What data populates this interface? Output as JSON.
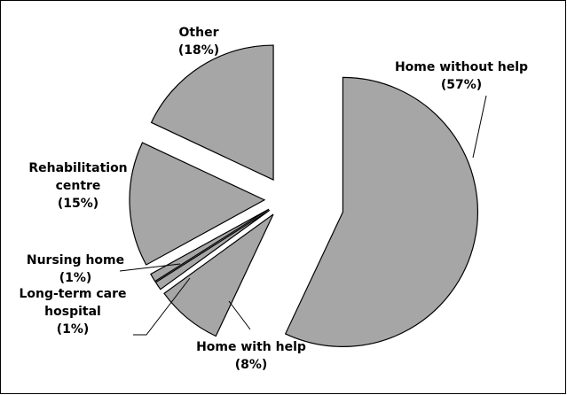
{
  "chart_data": {
    "type": "pie",
    "categories": [
      "Home without help",
      "Home with help",
      "Long-term care hospital",
      "Nursing home",
      "Rehabilitation centre",
      "Other"
    ],
    "values": [
      57,
      8,
      1,
      1,
      15,
      18
    ],
    "value_labels": [
      "(57%)",
      "(8%)",
      "(1%)",
      "(1%)",
      "(15%)",
      "(18%)"
    ],
    "color": "#a6a6a6"
  }
}
